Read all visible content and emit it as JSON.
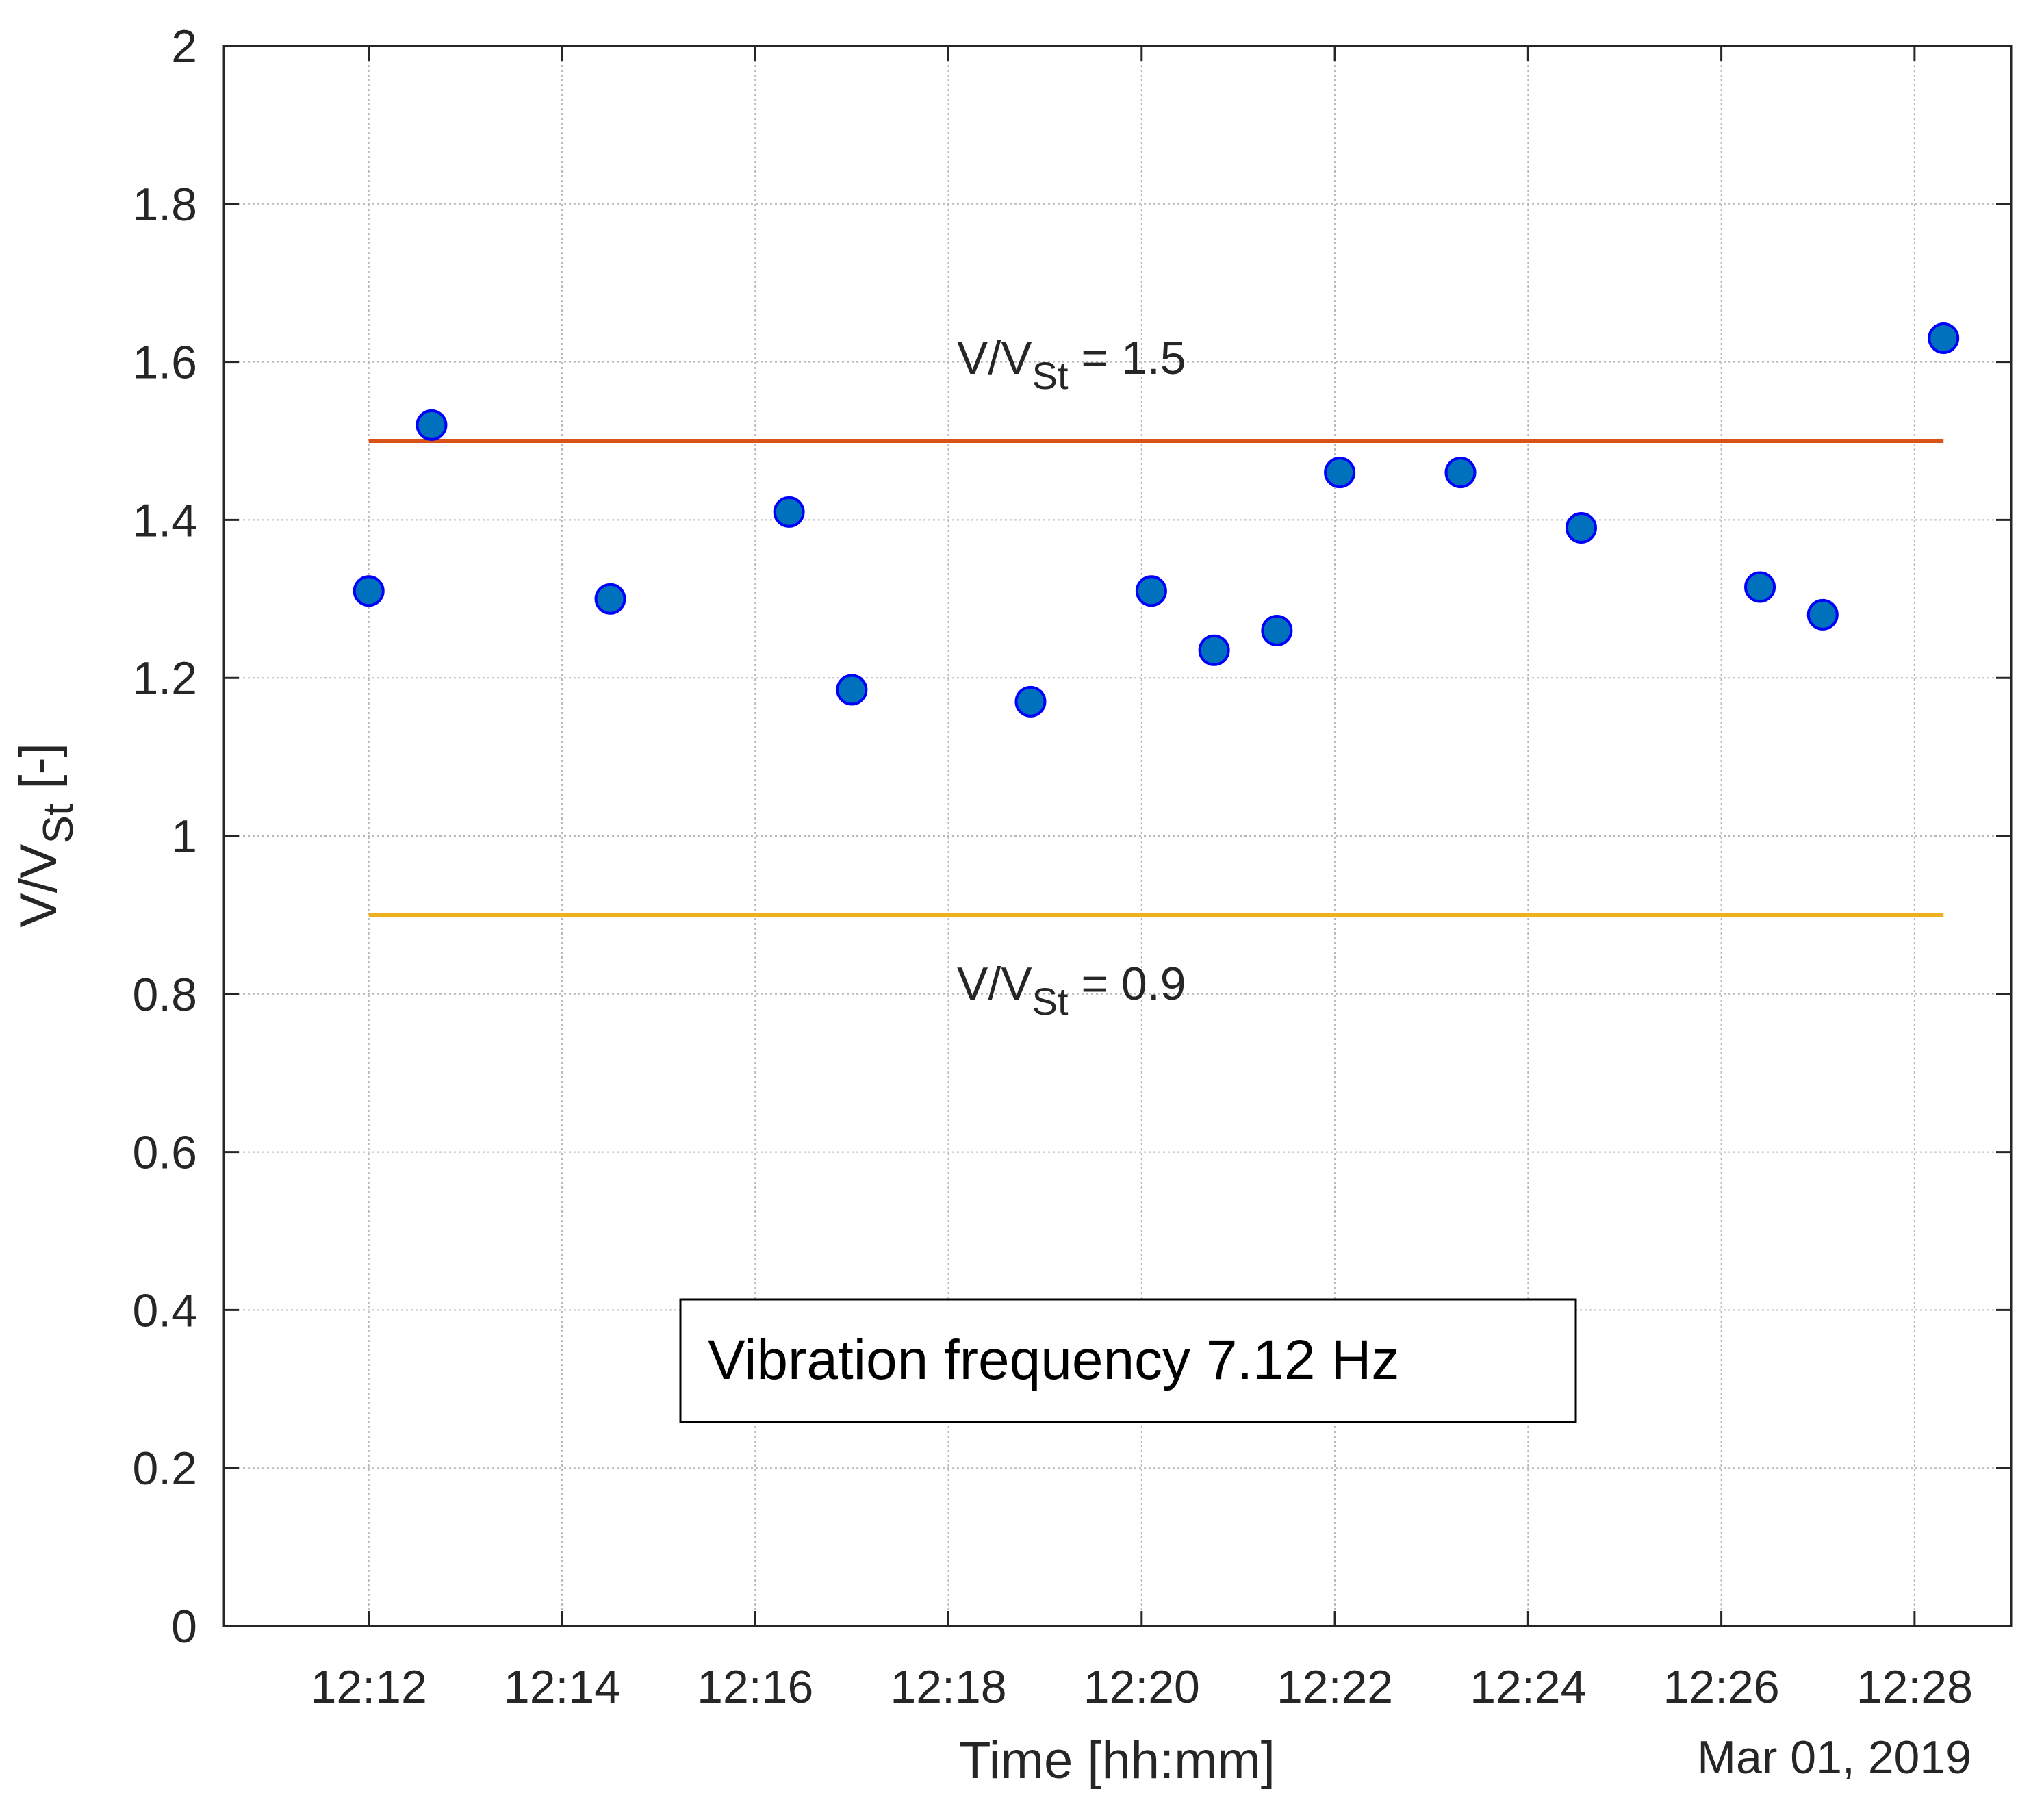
{
  "chart_data": {
    "type": "scatter",
    "title": "",
    "xlabel": "Time [hh:mm]",
    "ylabel": {
      "main": "V/V",
      "sub": "St",
      "suffix": " [-]"
    },
    "date_label": "Mar 01, 2019",
    "x_unit": "minutes after 12:00",
    "xlim": [
      10.5,
      29.0
    ],
    "ylim": [
      0,
      2
    ],
    "grid": true,
    "x_ticks": [
      {
        "value": 12,
        "label": "12:12"
      },
      {
        "value": 14,
        "label": "12:14"
      },
      {
        "value": 16,
        "label": "12:16"
      },
      {
        "value": 18,
        "label": "12:18"
      },
      {
        "value": 20,
        "label": "12:20"
      },
      {
        "value": 22,
        "label": "12:22"
      },
      {
        "value": 24,
        "label": "12:24"
      },
      {
        "value": 26,
        "label": "12:26"
      },
      {
        "value": 28,
        "label": "12:28"
      }
    ],
    "y_ticks": [
      {
        "value": 0,
        "label": "0"
      },
      {
        "value": 0.2,
        "label": "0.2"
      },
      {
        "value": 0.4,
        "label": "0.4"
      },
      {
        "value": 0.6,
        "label": "0.6"
      },
      {
        "value": 0.8,
        "label": "0.8"
      },
      {
        "value": 1.0,
        "label": "1"
      },
      {
        "value": 1.2,
        "label": "1.2"
      },
      {
        "value": 1.4,
        "label": "1.4"
      },
      {
        "value": 1.6,
        "label": "1.6"
      },
      {
        "value": 1.8,
        "label": "1.8"
      },
      {
        "value": 2.0,
        "label": "2"
      }
    ],
    "series": [
      {
        "name": "V/VSt",
        "marker_fill": "#0072BD",
        "marker_edge": "#0000FF",
        "points": [
          {
            "x": 12.0,
            "y": 1.31
          },
          {
            "x": 12.65,
            "y": 1.52
          },
          {
            "x": 14.5,
            "y": 1.3
          },
          {
            "x": 16.35,
            "y": 1.41
          },
          {
            "x": 17.0,
            "y": 1.185
          },
          {
            "x": 18.85,
            "y": 1.17
          },
          {
            "x": 20.1,
            "y": 1.31
          },
          {
            "x": 20.75,
            "y": 1.235
          },
          {
            "x": 21.4,
            "y": 1.26
          },
          {
            "x": 22.05,
            "y": 1.46
          },
          {
            "x": 23.3,
            "y": 1.46
          },
          {
            "x": 24.55,
            "y": 1.39
          },
          {
            "x": 26.4,
            "y": 1.315
          },
          {
            "x": 27.05,
            "y": 1.28
          },
          {
            "x": 28.3,
            "y": 1.63
          }
        ]
      }
    ],
    "reference_lines": [
      {
        "y": 1.5,
        "x_start": 12.0,
        "x_end": 28.3,
        "color": "#D95319",
        "label_main": "V/V",
        "label_sub": "St",
        "label_suffix": " = 1.5"
      },
      {
        "y": 0.9,
        "x_start": 12.0,
        "x_end": 28.3,
        "color": "#EDB120",
        "label_main": "V/V",
        "label_sub": "St",
        "label_suffix": " = 0.9"
      }
    ],
    "annotation_box": {
      "text": "Vibration frequency 7.12 Hz"
    }
  }
}
